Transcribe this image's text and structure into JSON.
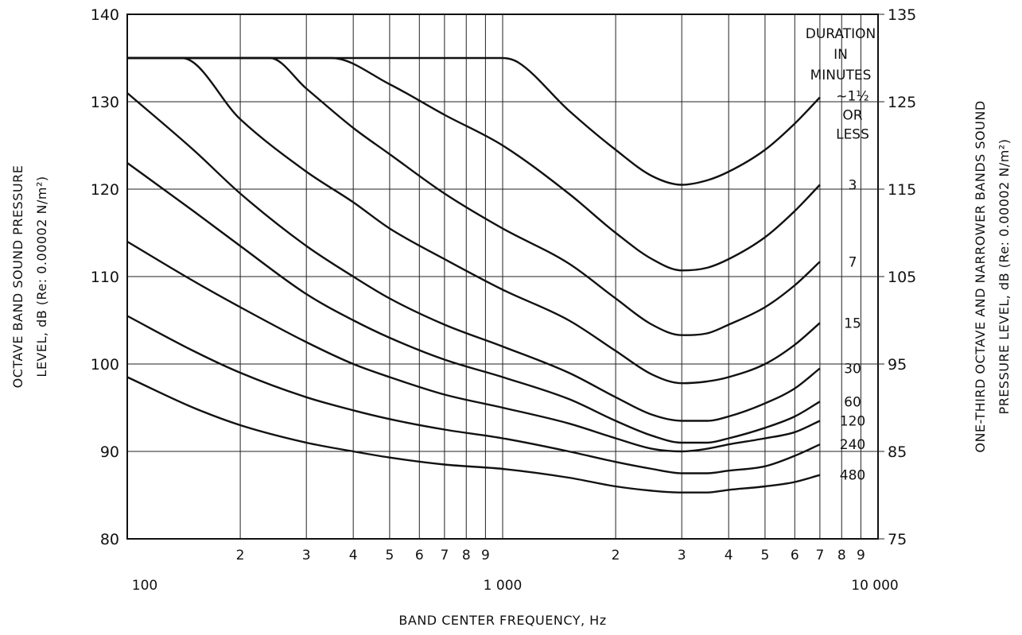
{
  "chart_data": {
    "type": "line",
    "xlabel": "BAND CENTER FREQUENCY, Hz",
    "ylabel_left_line1": "OCTAVE BAND SOUND PRESSURE",
    "ylabel_left_line2": "LEVEL, dB (Re: 0.00002 N/m²)",
    "ylabel_right_line1": "ONE-THIRD OCTAVE AND NARROWER BANDS SOUND",
    "ylabel_right_line2": "PRESSURE LEVEL, dB (Re: 0.00002 N/m²)",
    "x_scale": "log",
    "xlim": [
      100,
      10000
    ],
    "ylim_left": [
      80,
      140
    ],
    "ylim_right": [
      75,
      135
    ],
    "y_ticks_left": [
      "80",
      "90",
      "100",
      "110",
      "120",
      "130",
      "140"
    ],
    "y_ticks_right": [
      "75",
      "85",
      "95",
      "105",
      "115",
      "125",
      "135"
    ],
    "x_ticks": [
      {
        "value": 100,
        "label": "100"
      },
      {
        "value": 200,
        "label": "2"
      },
      {
        "value": 300,
        "label": "3"
      },
      {
        "value": 400,
        "label": "4"
      },
      {
        "value": 500,
        "label": "5"
      },
      {
        "value": 600,
        "label": "6"
      },
      {
        "value": 700,
        "label": "7"
      },
      {
        "value": 800,
        "label": "8"
      },
      {
        "value": 900,
        "label": "9"
      },
      {
        "value": 1000,
        "label": "1 000"
      },
      {
        "value": 2000,
        "label": "2"
      },
      {
        "value": 3000,
        "label": "3"
      },
      {
        "value": 4000,
        "label": "4"
      },
      {
        "value": 5000,
        "label": "5"
      },
      {
        "value": 6000,
        "label": "6"
      },
      {
        "value": 7000,
        "label": "7"
      },
      {
        "value": 8000,
        "label": "8"
      },
      {
        "value": 9000,
        "label": "9"
      },
      {
        "value": 10000,
        "label": "10 000"
      }
    ],
    "duration_header": [
      "DURATION",
      "IN",
      "MINUTES"
    ],
    "grid": true,
    "series": [
      {
        "name": "~1½ OR LESS",
        "x": [
          100,
          1000,
          1100,
          1500,
          2000,
          2500,
          3000,
          3500,
          4000,
          5000,
          6000,
          7000
        ],
        "y": [
          135,
          135,
          134.5,
          129,
          124.5,
          121.5,
          120.5,
          121,
          122,
          124.5,
          127.5,
          130.5
        ]
      },
      {
        "name": "3",
        "x": [
          100,
          350,
          500,
          700,
          1000,
          1500,
          2000,
          2500,
          3000,
          3500,
          4000,
          5000,
          6000,
          7000
        ],
        "y": [
          135,
          135,
          132,
          128.5,
          125,
          119.5,
          115,
          112,
          110.7,
          111,
          112,
          114.5,
          117.5,
          120.5
        ]
      },
      {
        "name": "7",
        "x": [
          100,
          240,
          300,
          400,
          500,
          700,
          1000,
          1500,
          2000,
          2500,
          3000,
          3500,
          4000,
          5000,
          6000,
          7000
        ],
        "y": [
          135,
          135,
          131.5,
          127,
          124,
          119.5,
          115.5,
          111.5,
          107.5,
          104.5,
          103.3,
          103.5,
          104.5,
          106.5,
          109,
          111.7
        ]
      },
      {
        "name": "15",
        "x": [
          100,
          140,
          200,
          300,
          400,
          500,
          700,
          1000,
          1500,
          2000,
          2500,
          3000,
          3500,
          4000,
          5000,
          6000,
          7000
        ],
        "y": [
          135,
          135,
          128,
          122,
          118.5,
          115.5,
          112,
          108.5,
          105,
          101.5,
          98.8,
          97.8,
          98,
          98.5,
          100,
          102.2,
          104.7
        ]
      },
      {
        "name": "30",
        "x": [
          100,
          150,
          200,
          300,
          400,
          500,
          700,
          1000,
          1500,
          2000,
          2500,
          3000,
          3500,
          4000,
          5000,
          6000,
          7000
        ],
        "y": [
          131,
          124.5,
          119.5,
          113.5,
          110,
          107.5,
          104.5,
          102,
          99,
          96.2,
          94.2,
          93.5,
          93.5,
          94,
          95.5,
          97.2,
          99.5
        ]
      },
      {
        "name": "60",
        "x": [
          100,
          150,
          200,
          300,
          400,
          500,
          700,
          1000,
          1500,
          2000,
          2500,
          3000,
          3500,
          4000,
          5000,
          6000,
          7000
        ],
        "y": [
          123,
          117.5,
          113.5,
          108,
          105,
          103,
          100.5,
          98.5,
          96,
          93.5,
          91.8,
          91,
          91,
          91.5,
          92.7,
          94,
          95.7
        ]
      },
      {
        "name": "120",
        "x": [
          100,
          150,
          200,
          300,
          400,
          500,
          700,
          1000,
          1500,
          2000,
          2500,
          3000,
          3500,
          4000,
          5000,
          6000,
          7000
        ],
        "y": [
          114,
          109.5,
          106.5,
          102.5,
          100,
          98.5,
          96.5,
          95,
          93.2,
          91.5,
          90.3,
          90,
          90.3,
          90.8,
          91.5,
          92.2,
          93.5
        ]
      },
      {
        "name": "240",
        "x": [
          100,
          150,
          200,
          300,
          400,
          500,
          700,
          1000,
          1500,
          2000,
          2500,
          3000,
          3500,
          4000,
          5000,
          6000,
          7000
        ],
        "y": [
          105.5,
          101.5,
          99,
          96.2,
          94.7,
          93.7,
          92.5,
          91.5,
          90,
          88.8,
          88,
          87.5,
          87.5,
          87.8,
          88.3,
          89.5,
          90.8
        ]
      },
      {
        "name": "480",
        "x": [
          100,
          150,
          200,
          300,
          400,
          500,
          700,
          1000,
          1500,
          2000,
          2500,
          3000,
          3500,
          4000,
          5000,
          6000,
          7000
        ],
        "y": [
          98.5,
          95,
          93,
          91,
          90,
          89.3,
          88.5,
          88,
          87,
          86,
          85.5,
          85.3,
          85.3,
          85.6,
          86,
          86.5,
          87.3
        ]
      }
    ],
    "extra_series_label_lines": {
      "~1½ OR LESS": [
        "~1½",
        "OR",
        "LESS"
      ]
    }
  }
}
